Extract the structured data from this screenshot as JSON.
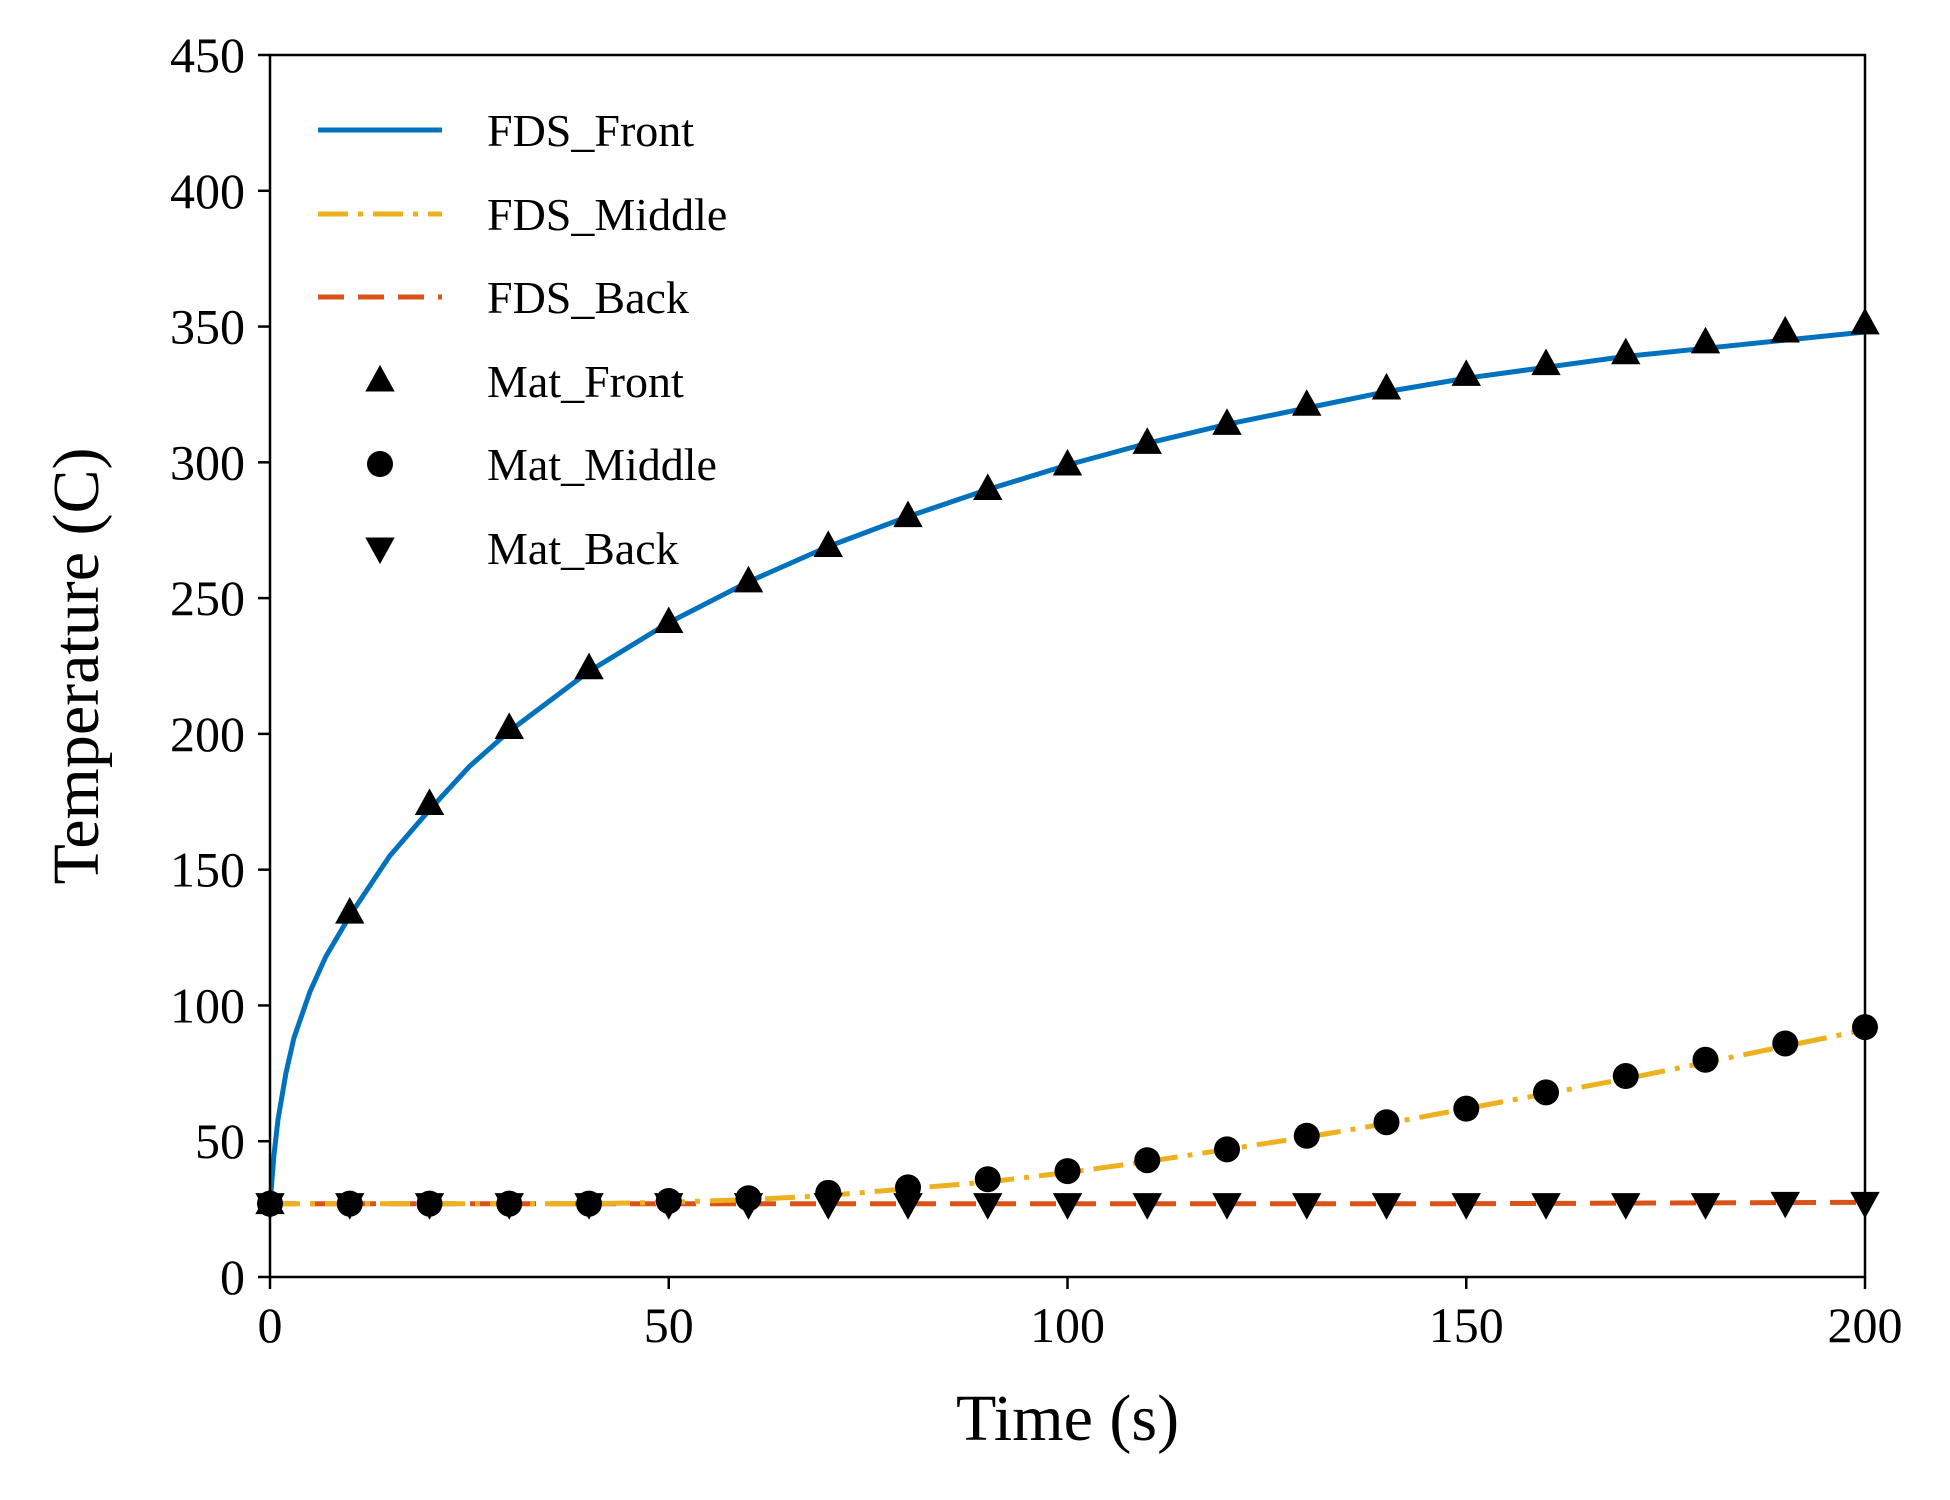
{
  "chart_data": {
    "type": "line",
    "title": "",
    "xlabel": "Time (s)",
    "ylabel": "Temperature (C)",
    "xlim": [
      0,
      200
    ],
    "ylim": [
      0,
      450
    ],
    "xticks": [
      0,
      50,
      100,
      150,
      200
    ],
    "yticks": [
      0,
      50,
      100,
      150,
      200,
      250,
      300,
      350,
      400,
      450
    ],
    "grid": false,
    "legend_position": "top-left",
    "lines": [
      {
        "name": "FDS_Front",
        "color": "#0072bd",
        "dash": "solid",
        "x": [
          0,
          0.5,
          1,
          2,
          3,
          5,
          7,
          10,
          15,
          20,
          25,
          30,
          40,
          50,
          60,
          70,
          80,
          90,
          100,
          110,
          120,
          130,
          140,
          150,
          160,
          170,
          180,
          190,
          200
        ],
        "y": [
          27,
          45,
          58,
          75,
          88,
          105,
          118,
          133,
          155,
          172,
          188,
          201,
          223,
          241,
          256,
          269,
          280,
          290,
          299,
          307,
          314,
          320,
          326,
          331,
          335,
          339,
          342,
          345,
          348
        ]
      },
      {
        "name": "FDS_Middle",
        "color": "#edb120",
        "dash": "dashdot",
        "x": [
          0,
          10,
          20,
          30,
          40,
          50,
          60,
          70,
          80,
          90,
          100,
          110,
          120,
          130,
          140,
          150,
          160,
          170,
          180,
          190,
          200
        ],
        "y": [
          27,
          27,
          27,
          27,
          27,
          27.5,
          28.5,
          30,
          32.5,
          35,
          38.5,
          42.5,
          47,
          51.5,
          56.5,
          62,
          67.5,
          73,
          79,
          85,
          91
        ]
      },
      {
        "name": "FDS_Back",
        "color": "#d95319",
        "dash": "dashed",
        "x": [
          0,
          50,
          100,
          150,
          200
        ],
        "y": [
          27,
          27,
          27,
          27,
          27.5
        ]
      }
    ],
    "markers": [
      {
        "name": "Mat_Front",
        "marker": "triangle-up",
        "color": "#000000",
        "x": [
          0,
          10,
          20,
          30,
          40,
          50,
          60,
          70,
          80,
          90,
          100,
          110,
          120,
          130,
          140,
          150,
          160,
          170,
          180,
          190,
          200
        ],
        "y": [
          27,
          134,
          174,
          202,
          224,
          241,
          256,
          269,
          280,
          290,
          299,
          307,
          314,
          321,
          327,
          332,
          336,
          340,
          344,
          348,
          351
        ]
      },
      {
        "name": "Mat_Middle",
        "marker": "circle",
        "color": "#000000",
        "x": [
          0,
          10,
          20,
          30,
          40,
          50,
          60,
          70,
          80,
          90,
          100,
          110,
          120,
          130,
          140,
          150,
          160,
          170,
          180,
          190,
          200
        ],
        "y": [
          27,
          27,
          27,
          27,
          27,
          28,
          29,
          31,
          33,
          36,
          39,
          43,
          47,
          52,
          57,
          62,
          68,
          74,
          80,
          86,
          92
        ]
      },
      {
        "name": "Mat_Back",
        "marker": "triangle-down",
        "color": "#000000",
        "x": [
          0,
          10,
          20,
          30,
          40,
          50,
          60,
          70,
          80,
          90,
          100,
          110,
          120,
          130,
          140,
          150,
          160,
          170,
          180,
          190,
          200
        ],
        "y": [
          27,
          27,
          27,
          27,
          27,
          27,
          27,
          27,
          27,
          27,
          27,
          27,
          27,
          27,
          27,
          27,
          27,
          27,
          27,
          27.5,
          27.5
        ]
      }
    ]
  }
}
